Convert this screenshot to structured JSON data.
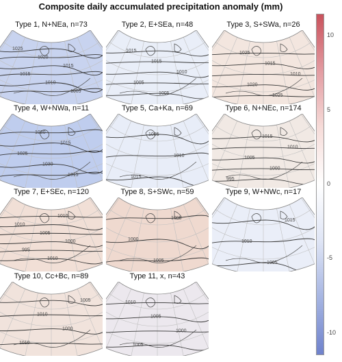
{
  "title": "Composite daily accumulated precipitation anomaly (mm)",
  "panels": [
    {
      "label": "Type 1, N+NEa, n=73",
      "isobars": [
        "1025",
        "1020",
        "1015",
        "1015",
        "1010",
        "1005"
      ],
      "tint": "#c8d3ef"
    },
    {
      "label": "Type 2, E+SEa, n=48",
      "isobars": [
        "1015",
        "1015",
        "1010",
        "1005",
        "1005"
      ],
      "tint": "#e9eef8"
    },
    {
      "label": "Type 3, S+SWa, n=26",
      "isobars": [
        "1025",
        "1015",
        "1010",
        "1020",
        "1025"
      ],
      "tint": "#f3e6df"
    },
    {
      "label": "Type 4, W+NWa, n=11",
      "isobars": [
        "1020",
        "1015",
        "1025",
        "1030",
        "1015"
      ],
      "tint": "#bfcdee"
    },
    {
      "label": "Type 5, Ca+Ka, n=69",
      "isobars": [
        "1005",
        "1010",
        "1015"
      ],
      "tint": "#e8edf8"
    },
    {
      "label": "Type 6, N+NEc, n=174",
      "isobars": [
        "1015",
        "1010",
        "1005",
        "1000",
        "995"
      ],
      "tint": "#f1e9e4"
    },
    {
      "label": "Type 7, E+SEc, n=120",
      "isobars": [
        "1010",
        "1010",
        "1005",
        "1000",
        "995",
        "1010"
      ],
      "tint": "#f1dfd6"
    },
    {
      "label": "Type 8, S+SWc, n=59",
      "isobars": [
        "1005",
        "1000",
        "1005"
      ],
      "tint": "#efd9cf"
    },
    {
      "label": "Type 9, W+NWc, n=17",
      "isobars": [
        "1015",
        "1010",
        "1005"
      ],
      "tint": "#eaeef8"
    },
    {
      "label": "Type 10, Cc+Bc, n=89",
      "isobars": [
        "1005",
        "1010",
        "1000",
        "1010"
      ],
      "tint": "#f1e3dc"
    },
    {
      "label": "Type 11, x, n=43",
      "isobars": [
        "1010",
        "1005",
        "1000",
        "1005"
      ],
      "tint": "#ece8ee"
    }
  ],
  "colorbar": {
    "ticks": [
      "10",
      "5",
      "0",
      "-5",
      "-10"
    ],
    "tick_values": [
      10,
      5,
      0,
      -5,
      -10
    ],
    "min": -11.5,
    "max": 11.5,
    "colors": [
      "#6f82cc",
      "#a6b5e2",
      "#dfe5f5",
      "#ffffff",
      "#f6dcd9",
      "#e39ca2",
      "#c9525c"
    ]
  }
}
